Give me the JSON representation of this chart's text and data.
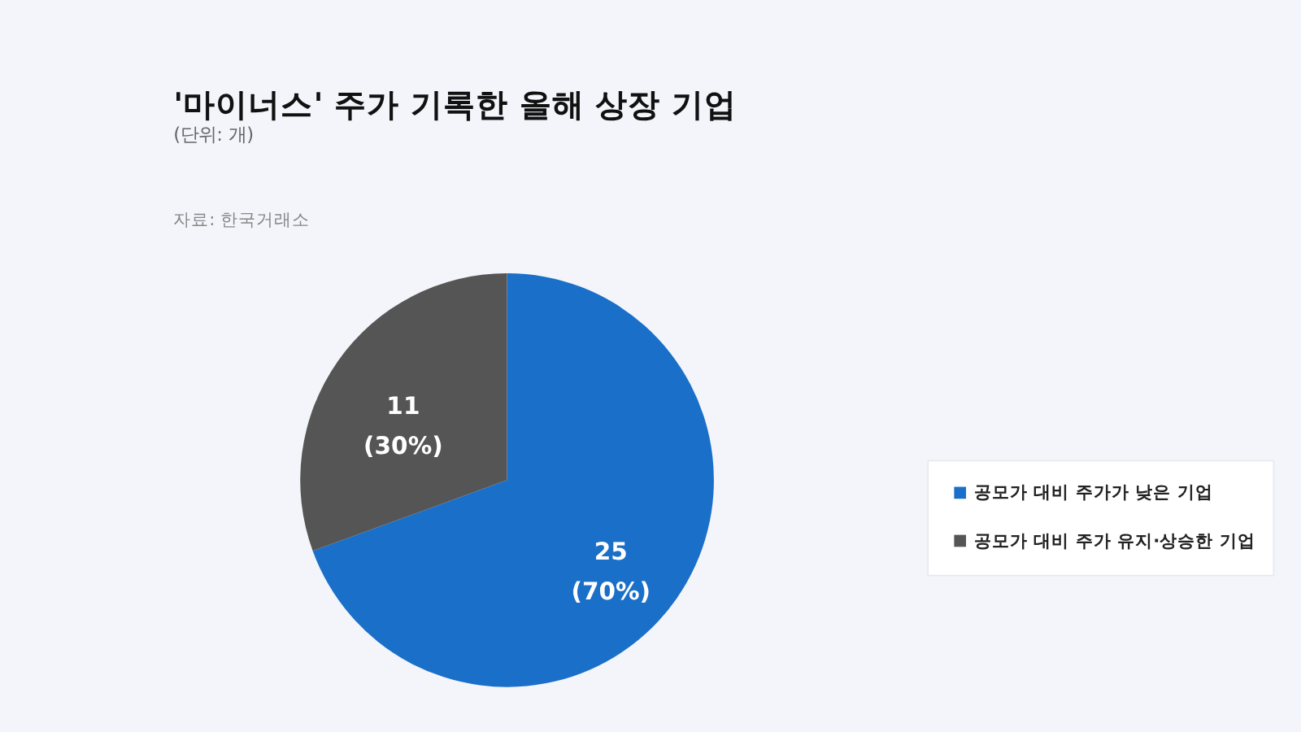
{
  "chart_data": {
    "type": "pie",
    "title": "'마이너스' 주가 기록한 올해 상장 기업",
    "subtitle": "(단위: 개)",
    "annotations": [
      "자료: 한국거래소"
    ],
    "categories": [
      "공모가 대비 주가가 낮은 기업",
      "공모가 대비 주가 유지·상승한 기업"
    ],
    "values": [
      25,
      11
    ],
    "colors": [
      "#1a6fc9",
      "#555555"
    ],
    "value_labels": [
      "25\n(70%)",
      "11\n(30%)"
    ],
    "legend": "right"
  }
}
